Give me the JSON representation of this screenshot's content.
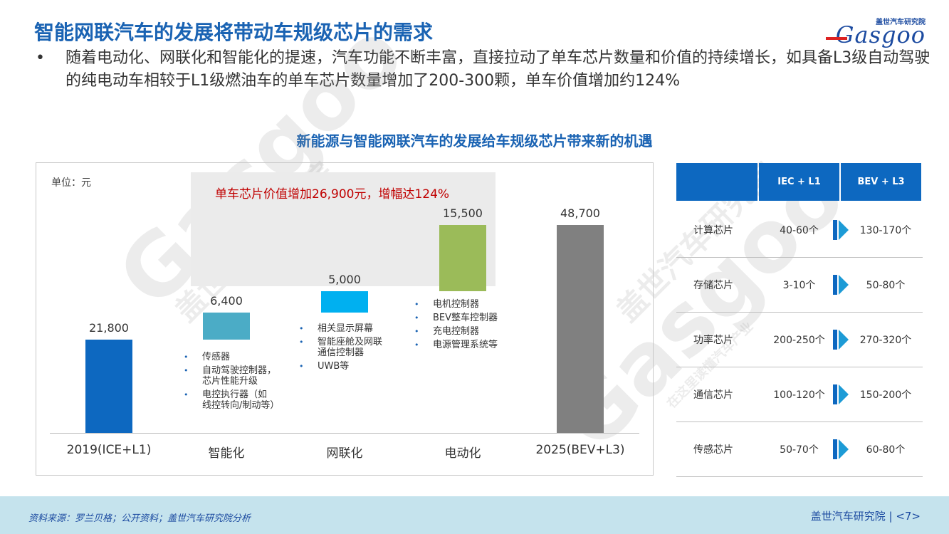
{
  "title": "智能网联汽车的发展将带动车规级芯片的需求",
  "logo": {
    "sub": "盖世汽车研究院",
    "main": "Gasgoo"
  },
  "bullet": "随着电动化、网联化和智能化的提速，汽车功能不断丰富，直接拉动了单车芯片数量和价值的持续增长，如具备L3级自动驾驶的纯电动车相较于L1级燃油车的单车芯片数量增加了200-300颗，单车价值增加约124%",
  "bullet_symbol": "•",
  "subtitle": "新能源与智能网联汽车的发展给车规级芯片带来新的机遇",
  "chart_data": {
    "type": "bar",
    "unit_label": "单位：元",
    "highlight": "单车芯片价值增加26,900元，增幅达124%",
    "categories": [
      "2019(ICE+L1)",
      "智能化",
      "网联化",
      "电动化",
      "2025(BEV+L3)"
    ],
    "values": [
      21800,
      6400,
      5000,
      15500,
      48700
    ],
    "value_labels": [
      "21,800",
      "6,400",
      "5,000",
      "15,500",
      "48,700"
    ],
    "waterfall": true,
    "colors": [
      "#0d68c0",
      "#4bacc6",
      "#00b0f0",
      "#9bbb59",
      "#808080"
    ],
    "notes": {
      "smart": [
        "传感器",
        "自动驾驶控制器，\n芯片性能升级",
        "电控执行器（如\n线控转向/制动等）"
      ],
      "connected": [
        "相关显示屏幕",
        "智能座舱及网联\n通信控制器",
        "UWB等"
      ],
      "electric": [
        "电机控制器",
        "BEV整车控制器",
        "充电控制器",
        "电源管理系统等"
      ]
    }
  },
  "table": {
    "headers": [
      "",
      "IEC + L1",
      "BEV + L3"
    ],
    "rows": [
      {
        "name": "计算芯片",
        "before": "40-60个",
        "after": "130-170个"
      },
      {
        "name": "存储芯片",
        "before": "3-10个",
        "after": "50-80个"
      },
      {
        "name": "功率芯片",
        "before": "200-250个",
        "after": "270-320个"
      },
      {
        "name": "通信芯片",
        "before": "100-120个",
        "after": "150-200个"
      },
      {
        "name": "传感芯片",
        "before": "50-70个",
        "after": "60-80个"
      }
    ]
  },
  "footer": {
    "source": "资料来源：罗兰贝格；公开资料；盖世汽车研究院分析",
    "org": "盖世汽车研究院",
    "page": "<7>"
  },
  "watermark": {
    "brand": "盖世汽车研究院",
    "logo": "Gasgoo",
    "tagline": "在这里读懂汽车产业"
  },
  "colors": {
    "accent": "#1a63b3",
    "header_blue": "#0d68c0",
    "highlight_red": "#c00000",
    "footer_bg": "#c5e3ed"
  }
}
